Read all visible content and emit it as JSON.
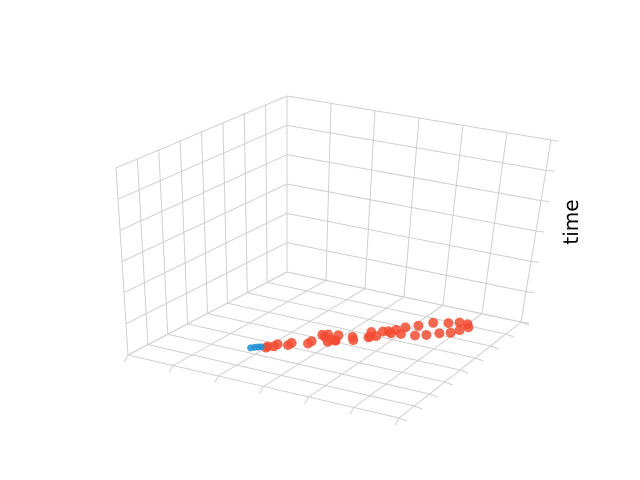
{
  "chart_data": {
    "type": "scatter",
    "projection": "3d",
    "title": "",
    "xlabel": "",
    "ylabel": "",
    "zlabel": "time",
    "xlim": [
      0,
      6
    ],
    "ylim": [
      0,
      8
    ],
    "zlim": [
      0,
      6
    ],
    "x_ticks": [
      0,
      1,
      2,
      3,
      4,
      5,
      6
    ],
    "y_ticks": [
      0,
      1,
      2,
      3,
      4,
      5,
      6,
      7,
      8
    ],
    "z_ticks": [
      0,
      1,
      2,
      3,
      4,
      5,
      6
    ],
    "tick_labels_visible": false,
    "grid": true,
    "legend": "none",
    "series": [
      {
        "color": "#f24c32",
        "marker": "circle",
        "points": [
          [
            2.0,
            2.6,
            0
          ],
          [
            2.1,
            2.8,
            0
          ],
          [
            2.3,
            3.1,
            0
          ],
          [
            2.6,
            3.5,
            0
          ],
          [
            2.9,
            3.9,
            0
          ],
          [
            3.0,
            4.1,
            0
          ],
          [
            3.3,
            4.4,
            0
          ],
          [
            3.5,
            4.8,
            0
          ],
          [
            3.6,
            5.0,
            0
          ],
          [
            3.6,
            5.4,
            0
          ],
          [
            3.8,
            5.7,
            0
          ],
          [
            3.9,
            6.0,
            0
          ],
          [
            4.1,
            6.3,
            0
          ],
          [
            4.3,
            6.7,
            0
          ],
          [
            4.6,
            6.9,
            0
          ],
          [
            4.8,
            7.1,
            0
          ],
          [
            5.0,
            7.1,
            0
          ],
          [
            5.1,
            6.9,
            0
          ],
          [
            5.0,
            6.6,
            0
          ],
          [
            4.9,
            6.3,
            0
          ],
          [
            4.7,
            6.1,
            0
          ],
          [
            4.5,
            5.8,
            0
          ],
          [
            4.3,
            5.6,
            0
          ],
          [
            4.0,
            5.5,
            0
          ],
          [
            3.8,
            5.4,
            0
          ],
          [
            3.7,
            5.5,
            0
          ],
          [
            3.4,
            5.2,
            0
          ],
          [
            3.5,
            4.9,
            0
          ],
          [
            3.2,
            4.6,
            0
          ],
          [
            2.9,
            4.5,
            0
          ],
          [
            2.7,
            4.4,
            0
          ],
          [
            2.6,
            4.3,
            0
          ],
          [
            2.7,
            4.2,
            0
          ],
          [
            2.9,
            4.1,
            0
          ],
          [
            3.0,
            4.1,
            0
          ],
          [
            2.6,
            3.7,
            0
          ],
          [
            2.3,
            3.3,
            0
          ],
          [
            2.1,
            3.0,
            0
          ],
          [
            2.0,
            2.7,
            0
          ]
        ]
      },
      {
        "color": "#1f8fd4",
        "marker": "circle",
        "points": [
          [
            1.75,
            2.35,
            0
          ],
          [
            1.8,
            2.45,
            0
          ],
          [
            1.85,
            2.52,
            0
          ],
          [
            1.9,
            2.58,
            0
          ]
        ]
      }
    ]
  }
}
